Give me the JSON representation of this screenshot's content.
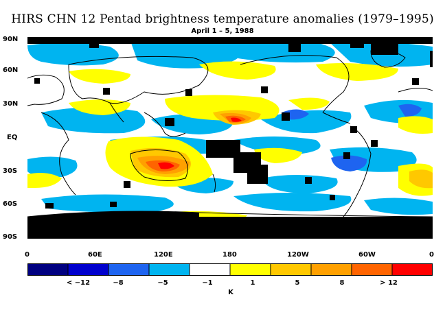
{
  "title": "HIRS CHN 12 Pentad brightness temperature anomalies (1979–1995)",
  "subtitle": "April 1 – 5, 1988",
  "y_ticks": [
    "90N",
    "60N",
    "30N",
    "EQ",
    "30S",
    "60S",
    "90S"
  ],
  "x_ticks": [
    "0",
    "60E",
    "120E",
    "180",
    "120W",
    "60W",
    "0"
  ],
  "colorbar": {
    "colors": [
      "#000080",
      "#0000cd",
      "#1e64f0",
      "#00b4f0",
      "#ffffff",
      "#ffff00",
      "#ffc800",
      "#ffa000",
      "#ff6400",
      "#ff0000"
    ],
    "labels": [
      "< −12",
      "−8",
      "−5",
      "−1",
      "1",
      "5",
      "8",
      "> 12"
    ],
    "unit": "K"
  },
  "legend_colors": {
    "missing": "#000000",
    "coastline": "#000000"
  }
}
